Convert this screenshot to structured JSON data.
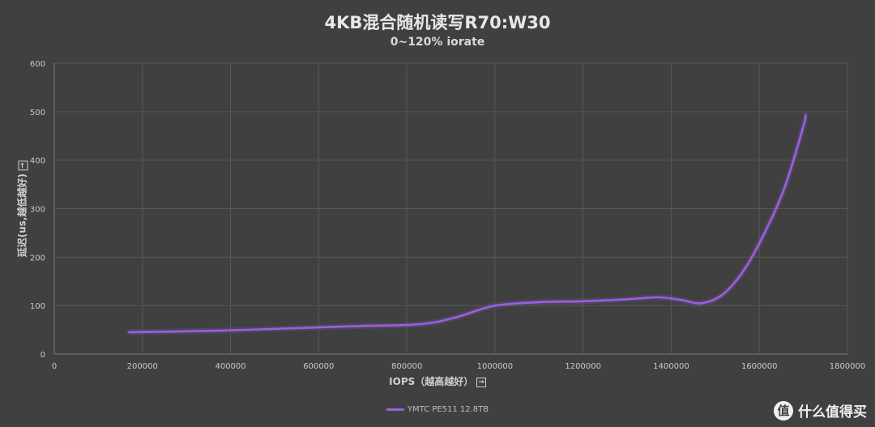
{
  "chart_data": {
    "type": "line",
    "title": "4KB混合随机读写R70:W30",
    "subtitle": "0~120% iorate",
    "xlabel": "IOPS（越高越好）",
    "ylabel": "延迟(us,越低越好)",
    "xlabel_arrow": "→",
    "ylabel_arrow": "→",
    "xlim": [
      0,
      1800000
    ],
    "ylim": [
      0,
      600
    ],
    "x_ticks": [
      "0",
      "200000",
      "400000",
      "600000",
      "800000",
      "1000000",
      "1200000",
      "1400000",
      "1600000",
      "1800000"
    ],
    "y_ticks": [
      "0",
      "100",
      "200",
      "300",
      "400",
      "500",
      "600"
    ],
    "grid": true,
    "legend_position": "bottom",
    "series": [
      {
        "name": "YMTC PE511 12.8TB",
        "color": "#9b5fe0",
        "points": [
          [
            170000,
            45
          ],
          [
            300000,
            47
          ],
          [
            400000,
            49
          ],
          [
            500000,
            52
          ],
          [
            600000,
            55
          ],
          [
            700000,
            58
          ],
          [
            800000,
            60
          ],
          [
            860000,
            65
          ],
          [
            920000,
            78
          ],
          [
            1000000,
            100
          ],
          [
            1100000,
            107
          ],
          [
            1200000,
            109
          ],
          [
            1300000,
            113
          ],
          [
            1370000,
            117
          ],
          [
            1420000,
            112
          ],
          [
            1470000,
            105
          ],
          [
            1520000,
            125
          ],
          [
            1570000,
            180
          ],
          [
            1620000,
            265
          ],
          [
            1660000,
            350
          ],
          [
            1700000,
            470
          ],
          [
            1705000,
            493
          ]
        ]
      }
    ]
  },
  "watermark": {
    "logo": "值",
    "text": "什么值得买"
  }
}
